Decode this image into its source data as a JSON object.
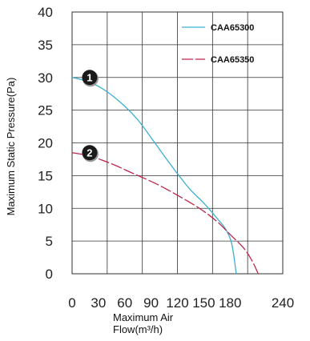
{
  "chart_data": {
    "type": "line",
    "title": "",
    "xlabel_lines": [
      "Maximum Air",
      "Flow(m³/h)"
    ],
    "ylabel": "Maximum Static Pressure(Pa)",
    "xlim": [
      0,
      240
    ],
    "ylim": [
      0,
      40
    ],
    "xticks": [
      0,
      30,
      60,
      90,
      120,
      150,
      180,
      240
    ],
    "xtick_labels": [
      "0",
      "30",
      "60",
      "90",
      "120",
      "150",
      "180",
      "240"
    ],
    "yticks": [
      0,
      5,
      10,
      15,
      20,
      25,
      30,
      35,
      40
    ],
    "ytick_labels": [
      "0",
      "5",
      "10",
      "15",
      "20",
      "25",
      "30",
      "35",
      "40"
    ],
    "grid": true,
    "legend_position": "top-right",
    "series": [
      {
        "name": "CAA65300",
        "color": "#3ab0cf",
        "dash": "solid",
        "x": [
          0,
          20,
          40,
          60,
          75,
          90,
          105,
          120,
          135,
          150,
          165,
          175,
          182,
          187
        ],
        "y": [
          30,
          29.3,
          27.8,
          25.6,
          23.5,
          20.8,
          18,
          15.3,
          12.8,
          10.8,
          8.5,
          6.8,
          4.5,
          0
        ]
      },
      {
        "name": "CAA65350",
        "color": "#c0254a",
        "dash": "dashed",
        "x": [
          0,
          20,
          45,
          70,
          95,
          120,
          145,
          165,
          180,
          195,
          205,
          212
        ],
        "y": [
          18.5,
          18,
          16.8,
          15.3,
          13.8,
          12,
          10,
          8,
          6,
          4,
          2,
          0
        ]
      }
    ],
    "markers": [
      {
        "label": "1",
        "x": 20,
        "y": 30
      },
      {
        "label": "2",
        "x": 20,
        "y": 18.5
      }
    ]
  }
}
